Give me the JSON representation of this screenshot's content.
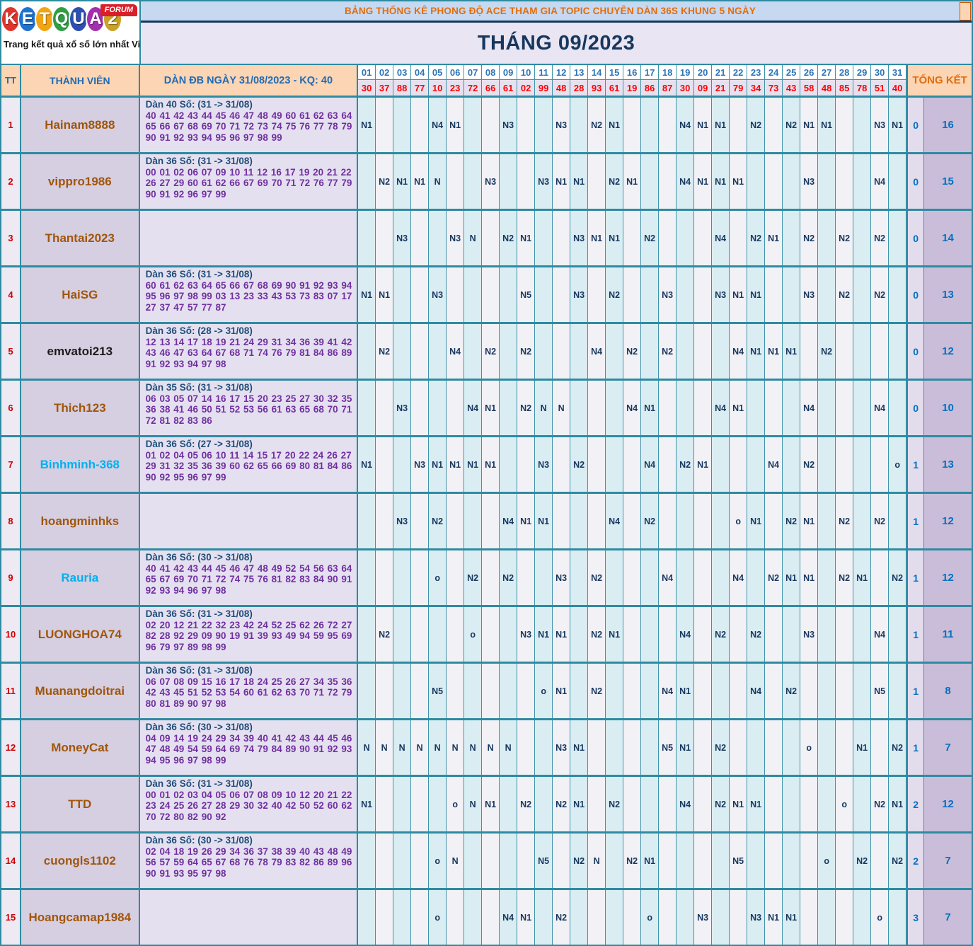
{
  "logo": {
    "letters": [
      {
        "ch": "K",
        "color": "#e0332c"
      },
      {
        "ch": "E",
        "color": "#1e73d2"
      },
      {
        "ch": "T",
        "color": "#f2a413"
      },
      {
        "ch": "Q",
        "color": "#2f9e44"
      },
      {
        "ch": "U",
        "color": "#2c4fb0"
      },
      {
        "ch": "A",
        "color": "#a12fae"
      },
      {
        "ch": "2",
        "color": "#c9a227"
      }
    ],
    "forum_label": "FORUM",
    "tagline": "Trang kết quả xổ số lớn nhất Việt Nam"
  },
  "banner": {
    "title": "BẢNG THỐNG KÊ PHONG ĐỘ ACE THAM GIA TOPIC CHUYÊN DÀN 36S KHUNG 5 NGÀY",
    "month": "THÁNG 09/2023"
  },
  "colors": {
    "banner_title": "#e36c0a",
    "month_text": "#17375e",
    "day_header_text": "#2e75b6",
    "result_text": "#ff0000",
    "mark_text": "#17375e",
    "total_text": "#0070c0",
    "border_teal": "#2e8ba1"
  },
  "table": {
    "headers": {
      "tt": "TT",
      "member": "THÀNH VIÊN",
      "dan": "DÀN ĐB NGÀY 31/08/2023 - KQ: 40",
      "total": "TỔNG KẾT"
    },
    "days": [
      "01",
      "02",
      "03",
      "04",
      "05",
      "06",
      "07",
      "08",
      "09",
      "10",
      "11",
      "12",
      "13",
      "14",
      "15",
      "16",
      "17",
      "18",
      "19",
      "20",
      "21",
      "22",
      "23",
      "24",
      "25",
      "26",
      "27",
      "28",
      "29",
      "30",
      "31"
    ],
    "results": [
      "30",
      "37",
      "88",
      "77",
      "10",
      "23",
      "72",
      "66",
      "61",
      "02",
      "99",
      "48",
      "28",
      "93",
      "61",
      "19",
      "86",
      "87",
      "30",
      "09",
      "21",
      "79",
      "34",
      "73",
      "43",
      "58",
      "48",
      "85",
      "78",
      "51",
      "40"
    ],
    "members": [
      {
        "tt": "1",
        "name": "Hainam8888",
        "name_color": "#a0560a",
        "dan_title": "Dàn 40 Số: (31 -> 31/08)",
        "dan_numbers": "40 41 42 43 44 45 46 47 48 49 60 61 62 63 64 65 66 67 68 69 70 71 72 73 74 75 76 77 78 79 90 91 92 93 94 95 96 97 98 99",
        "marks": {
          "01": "N1",
          "05": "N4",
          "06": "N1",
          "09": "N3",
          "12": "N3",
          "14": "N2",
          "15": "N1",
          "19": "N4",
          "20": "N1",
          "21": "N1",
          "23": "N2",
          "25": "N2",
          "26": "N1",
          "27": "N1",
          "30": "N3",
          "31": "N1"
        },
        "totals": [
          "0",
          "16"
        ]
      },
      {
        "tt": "2",
        "name": "vippro1986",
        "name_color": "#a0560a",
        "dan_title": "Dàn 36 Số: (31 -> 31/08)",
        "dan_numbers": "00 01 02 06 07 09 10 11 12 16 17 19 20 21 22 26 27 29 60 61 62 66 67 69 70 71 72 76 77 79 90 91 92 96 97 99",
        "marks": {
          "02": "N2",
          "03": "N1",
          "04": "N1",
          "05": "N",
          "08": "N3",
          "11": "N3",
          "12": "N1",
          "13": "N1",
          "15": "N2",
          "16": "N1",
          "19": "N4",
          "20": "N1",
          "21": "N1",
          "22": "N1",
          "26": "N3",
          "30": "N4"
        },
        "totals": [
          "0",
          "15"
        ]
      },
      {
        "tt": "3",
        "name": "Thantai2023",
        "name_color": "#a0560a",
        "dan_title": "",
        "dan_numbers": "",
        "marks": {
          "03": "N3",
          "06": "N3",
          "07": "N",
          "09": "N2",
          "10": "N1",
          "13": "N3",
          "14": "N1",
          "15": "N1",
          "17": "N2",
          "21": "N4",
          "23": "N2",
          "24": "N1",
          "26": "N2",
          "28": "N2",
          "30": "N2"
        },
        "totals": [
          "0",
          "14"
        ]
      },
      {
        "tt": "4",
        "name": "HaiSG",
        "name_color": "#a0560a",
        "dan_title": "Dàn 36 Số: (31 -> 31/08)",
        "dan_numbers": "60 61 62 63 64 65 66 67 68 69 90 91 92 93 94 95 96 97 98 99 03 13 23 33 43 53 73 83 07 17 27 37 47 57 77 87",
        "marks": {
          "01": "N1",
          "02": "N1",
          "05": "N3",
          "10": "N5",
          "13": "N3",
          "15": "N2",
          "18": "N3",
          "21": "N3",
          "22": "N1",
          "23": "N1",
          "26": "N3",
          "28": "N2",
          "30": "N2"
        },
        "totals": [
          "0",
          "13"
        ]
      },
      {
        "tt": "5",
        "name": "emvatoi213",
        "name_color": "#1a1a1a",
        "dan_title": "Dàn 36 Số: (28 -> 31/08)",
        "dan_numbers": "12 13 14 17 18 19 21 24 29 31 34 36 39 41 42 43 46 47 63 64 67 68 71 74 76 79 81 84 86 89 91 92 93 94 97 98",
        "marks": {
          "02": "N2",
          "06": "N4",
          "08": "N2",
          "10": "N2",
          "14": "N4",
          "16": "N2",
          "18": "N2",
          "22": "N4",
          "23": "N1",
          "24": "N1",
          "25": "N1",
          "27": "N2"
        },
        "totals": [
          "0",
          "12"
        ]
      },
      {
        "tt": "6",
        "name": "Thich123",
        "name_color": "#a0560a",
        "dan_title": "Dàn 35 Số: (31 -> 31/08)",
        "dan_numbers": "06 03 05 07 14 16 17 15 20 23 25 27 30 32 35 36 38 41 46 50 51 52 53 56 61 63 65 68 70 71 72 81 82 83 86",
        "marks": {
          "03": "N3",
          "07": "N4",
          "08": "N1",
          "10": "N2",
          "11": "N",
          "12": "N",
          "16": "N4",
          "17": "N1",
          "21": "N4",
          "22": "N1",
          "26": "N4",
          "30": "N4"
        },
        "totals": [
          "0",
          "10"
        ]
      },
      {
        "tt": "7",
        "name": "Binhminh-368",
        "name_color": "#00b0f0",
        "dan_title": "Dàn 36 Số: (27 -> 31/08)",
        "dan_numbers": "01 02 04 05 06 10 11 14 15 17 20 22 24 26 27 29 31 32 35 36 39 60 62 65 66 69 80 81 84 86 90 92 95 96 97 99",
        "marks": {
          "01": "N1",
          "04": "N3",
          "05": "N1",
          "06": "N1",
          "07": "N1",
          "08": "N1",
          "11": "N3",
          "13": "N2",
          "17": "N4",
          "19": "N2",
          "20": "N1",
          "24": "N4",
          "26": "N2",
          "31": "o"
        },
        "totals": [
          "1",
          "13"
        ]
      },
      {
        "tt": "8",
        "name": "hoangminhks",
        "name_color": "#a0560a",
        "dan_title": "",
        "dan_numbers": "",
        "marks": {
          "03": "N3",
          "05": "N2",
          "09": "N4",
          "10": "N1",
          "11": "N1",
          "15": "N4",
          "17": "N2",
          "22": "o",
          "23": "N1",
          "25": "N2",
          "26": "N1",
          "28": "N2",
          "30": "N2"
        },
        "totals": [
          "1",
          "12"
        ]
      },
      {
        "tt": "9",
        "name": "Rauria",
        "name_color": "#00b0f0",
        "dan_title": "Dàn 36 Số: (30 -> 31/08)",
        "dan_numbers": "40 41 42 43 44 45 46 47 48 49 52 54 56 63 64 65 67 69 70 71 72 74 75 76 81 82 83 84 90 91 92 93 94 96 97 98",
        "marks": {
          "05": "o",
          "07": "N2",
          "09": "N2",
          "12": "N3",
          "14": "N2",
          "18": "N4",
          "22": "N4",
          "24": "N2",
          "25": "N1",
          "26": "N1",
          "28": "N2",
          "29": "N1",
          "31": "N2"
        },
        "totals": [
          "1",
          "12"
        ]
      },
      {
        "tt": "10",
        "name": "LUONGHOA74",
        "name_color": "#a0560a",
        "dan_title": "Dàn 36 Số: (31 -> 31/08)",
        "dan_numbers": "02 20 12 21 22 32 23 42 24 52 25 62 26 72 27 82 28 92 29 09 90 19 91 39 93 49 94 59 95 69 96 79 97 89 98 99",
        "marks": {
          "02": "N2",
          "07": "o",
          "10": "N3",
          "11": "N1",
          "12": "N1",
          "14": "N2",
          "15": "N1",
          "19": "N4",
          "21": "N2",
          "23": "N2",
          "26": "N3",
          "30": "N4"
        },
        "totals": [
          "1",
          "11"
        ]
      },
      {
        "tt": "11",
        "name": "Muanangdoitrai",
        "name_color": "#a0560a",
        "dan_title": "Dàn 36 Số: (31 -> 31/08)",
        "dan_numbers": "06 07 08 09 15 16 17 18 24 25 26 27 34 35 36 42 43 45 51 52 53 54 60 61 62 63 70 71 72 79 80 81 89 90 97 98",
        "marks": {
          "05": "N5",
          "11": "o",
          "12": "N1",
          "14": "N2",
          "18": "N4",
          "19": "N1",
          "23": "N4",
          "25": "N2",
          "30": "N5"
        },
        "totals": [
          "1",
          "8"
        ]
      },
      {
        "tt": "12",
        "name": "MoneyCat",
        "name_color": "#a0560a",
        "dan_title": "Dàn 36 Số: (30 -> 31/08)",
        "dan_numbers": "04 09 14 19 24 29 34 39 40 41 42 43 44 45 46 47 48 49 54 59 64 69 74 79 84 89 90 91 92 93 94 95 96 97 98 99",
        "marks": {
          "01": "N",
          "02": "N",
          "03": "N",
          "04": "N",
          "05": "N",
          "06": "N",
          "07": "N",
          "08": "N",
          "09": "N",
          "12": "N3",
          "13": "N1",
          "18": "N5",
          "19": "N1",
          "21": "N2",
          "26": "o",
          "29": "N1",
          "31": "N2"
        },
        "totals": [
          "1",
          "7"
        ]
      },
      {
        "tt": "13",
        "name": "TTD",
        "name_color": "#a0560a",
        "dan_title": "Dàn 36 Số: (31 -> 31/08)",
        "dan_numbers": "00 01 02 03 04 05 06 07 08 09 10 12 20 21 22 23 24 25 26 27 28 29 30 32 40 42 50 52 60 62 70 72 80 82 90 92",
        "marks": {
          "01": "N1",
          "06": "o",
          "07": "N",
          "08": "N1",
          "10": "N2",
          "12": "N2",
          "13": "N1",
          "15": "N2",
          "19": "N4",
          "21": "N2",
          "22": "N1",
          "23": "N1",
          "28": "o",
          "30": "N2",
          "31": "N1"
        },
        "totals": [
          "2",
          "12"
        ]
      },
      {
        "tt": "14",
        "name": "cuongls1102",
        "name_color": "#a0560a",
        "dan_title": "Dàn 36 Số: (30 -> 31/08)",
        "dan_numbers": "02 04 18 19 26 29 34 36 37 38 39 40 43 48 49 56 57 59 64 65 67 68 76 78 79 83 82 86 89 96 90 91 93 95 97 98",
        "marks": {
          "05": "o",
          "06": "N",
          "11": "N5",
          "13": "N2",
          "14": "N",
          "16": "N2",
          "17": "N1",
          "22": "N5",
          "27": "o",
          "29": "N2",
          "31": "N2"
        },
        "totals": [
          "2",
          "7"
        ]
      },
      {
        "tt": "15",
        "name": "Hoangcamap1984",
        "name_color": "#a0560a",
        "dan_title": "",
        "dan_numbers": "",
        "marks": {
          "05": "o",
          "09": "N4",
          "10": "N1",
          "12": "N2",
          "17": "o",
          "20": "N3",
          "23": "N3",
          "24": "N1",
          "25": "N1",
          "30": "o"
        },
        "totals": [
          "3",
          "7"
        ]
      }
    ]
  }
}
